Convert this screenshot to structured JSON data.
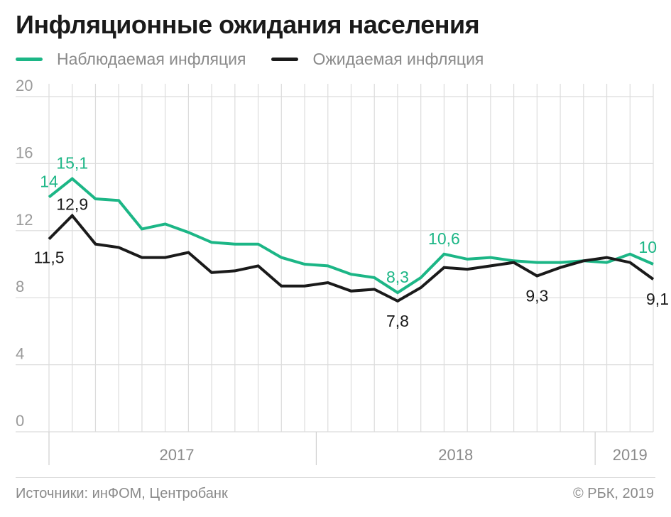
{
  "header": {
    "title": "Инфляционные ожидания населения"
  },
  "colors": {
    "observed": "#1cb686",
    "expected": "#1a1a1a",
    "grid": "#dcdcdc",
    "axis_text": "#9a9a9a"
  },
  "chart_data": {
    "type": "line",
    "ylim": [
      0,
      20
    ],
    "y_ticks": [
      "0",
      "4",
      "8",
      "12",
      "16",
      "20"
    ],
    "x": [
      "2017-01",
      "2017-02",
      "2017-03",
      "2017-04",
      "2017-05",
      "2017-06",
      "2017-07",
      "2017-08",
      "2017-09",
      "2017-10",
      "2017-11",
      "2017-12",
      "2018-01",
      "2018-02",
      "2018-03",
      "2018-04",
      "2018-05",
      "2018-06",
      "2018-07",
      "2018-08",
      "2018-09",
      "2018-10",
      "2018-11",
      "2018-12",
      "2019-01",
      "2019-02",
      "2019-03"
    ],
    "year_labels": [
      {
        "label": "2017",
        "range": [
          "2017-01",
          "2017-12"
        ]
      },
      {
        "label": "2018",
        "range": [
          "2018-01",
          "2018-12"
        ]
      },
      {
        "label": "2019",
        "range": [
          "2019-01",
          "2019-03"
        ]
      }
    ],
    "grid": true,
    "legend_position": "top-left",
    "series": [
      {
        "name": "Наблюдаемая инфляция",
        "color": "#1cb686",
        "values": [
          14.0,
          15.1,
          13.9,
          13.8,
          12.1,
          12.4,
          11.9,
          11.3,
          11.2,
          11.2,
          10.4,
          10.0,
          9.9,
          9.4,
          9.2,
          8.3,
          9.2,
          10.6,
          10.3,
          10.4,
          10.2,
          10.1,
          10.1,
          10.2,
          10.1,
          10.6,
          10.0
        ],
        "labels": [
          {
            "index": 0,
            "text": "14"
          },
          {
            "index": 1,
            "text": "15,1"
          },
          {
            "index": 15,
            "text": "8,3"
          },
          {
            "index": 17,
            "text": "10,6"
          },
          {
            "index": 26,
            "text": "10"
          }
        ]
      },
      {
        "name": "Ожидаемая инфляция",
        "color": "#1a1a1a",
        "values": [
          11.5,
          12.9,
          11.2,
          11.0,
          10.4,
          10.4,
          10.7,
          9.5,
          9.6,
          9.9,
          8.7,
          8.7,
          8.9,
          8.4,
          8.5,
          7.8,
          8.6,
          9.8,
          9.7,
          9.9,
          10.1,
          9.3,
          9.8,
          10.2,
          10.4,
          10.1,
          9.1
        ],
        "labels": [
          {
            "index": 0,
            "text": "11,5"
          },
          {
            "index": 1,
            "text": "12,9"
          },
          {
            "index": 15,
            "text": "7,8"
          },
          {
            "index": 21,
            "text": "9,3"
          },
          {
            "index": 26,
            "text": "9,1"
          }
        ]
      }
    ]
  },
  "footer": {
    "source": "Источники: инФОМ, Центробанк",
    "copyright": "© РБК, 2019"
  }
}
